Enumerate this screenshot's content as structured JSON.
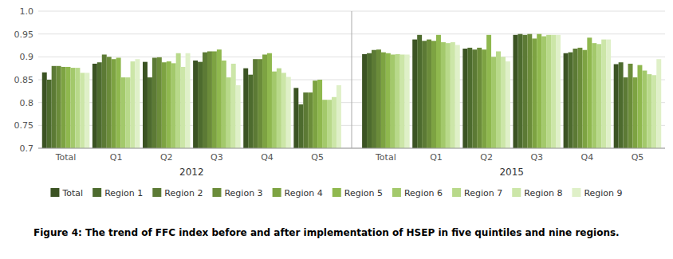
{
  "chart_data": {
    "type": "bar",
    "caption": "Figure 4: The trend of FFC index before and after implementation of HSEP in five quintiles and nine regions.",
    "annotations": [
      "2012",
      "2015"
    ],
    "categories": [
      "Total",
      "Q1",
      "Q2",
      "Q3",
      "Q4",
      "Q5",
      "Total",
      "Q1",
      "Q2",
      "Q3",
      "Q4",
      "Q5"
    ],
    "series": [
      {
        "name": "Total",
        "color": "#3b5323",
        "values": [
          0.866,
          0.885,
          0.889,
          0.892,
          0.875,
          0.832,
          0.906,
          0.938,
          0.918,
          0.948,
          0.908,
          0.884
        ]
      },
      {
        "name": "Region 1",
        "color": "#4d6b2e",
        "values": [
          0.85,
          0.888,
          0.855,
          0.889,
          0.861,
          0.796,
          0.908,
          0.948,
          0.92,
          0.95,
          0.91,
          0.888
        ]
      },
      {
        "name": "Region 2",
        "color": "#5c7a35",
        "values": [
          0.88,
          0.905,
          0.898,
          0.91,
          0.895,
          0.822,
          0.915,
          0.935,
          0.916,
          0.948,
          0.918,
          0.855
        ]
      },
      {
        "name": "Region 3",
        "color": "#6b8c3a",
        "values": [
          0.88,
          0.9,
          0.899,
          0.912,
          0.895,
          0.822,
          0.916,
          0.938,
          0.92,
          0.95,
          0.92,
          0.885
        ]
      },
      {
        "name": "Region 4",
        "color": "#7da342",
        "values": [
          0.878,
          0.895,
          0.888,
          0.912,
          0.905,
          0.848,
          0.91,
          0.935,
          0.916,
          0.94,
          0.915,
          0.855
        ]
      },
      {
        "name": "Region 5",
        "color": "#8fb84e",
        "values": [
          0.878,
          0.898,
          0.89,
          0.916,
          0.908,
          0.85,
          0.908,
          0.948,
          0.948,
          0.95,
          0.942,
          0.882
        ]
      },
      {
        "name": "Region 6",
        "color": "#a3c96b",
        "values": [
          0.876,
          0.855,
          0.886,
          0.892,
          0.868,
          0.806,
          0.905,
          0.932,
          0.9,
          0.945,
          0.93,
          0.87
        ]
      },
      {
        "name": "Region 7",
        "color": "#b8d98a",
        "values": [
          0.876,
          0.855,
          0.908,
          0.855,
          0.875,
          0.806,
          0.906,
          0.93,
          0.912,
          0.948,
          0.928,
          0.862
        ]
      },
      {
        "name": "Region 8",
        "color": "#cce6a8",
        "values": [
          0.865,
          0.89,
          0.878,
          0.885,
          0.865,
          0.812,
          0.905,
          0.932,
          0.9,
          0.948,
          0.938,
          0.86
        ]
      },
      {
        "name": "Region 9",
        "color": "#dff0c8",
        "values": [
          0.865,
          0.895,
          0.908,
          0.838,
          0.856,
          0.838,
          0.905,
          0.926,
          0.89,
          0.948,
          0.938,
          0.895
        ]
      }
    ],
    "ylim": [
      0.7,
      1.0
    ],
    "yticks": [
      0.7,
      0.75,
      0.8,
      0.85,
      0.9,
      0.95,
      {
        "value": 1.0,
        "label": "1.0"
      }
    ],
    "grid": true,
    "legend": "bottom"
  }
}
